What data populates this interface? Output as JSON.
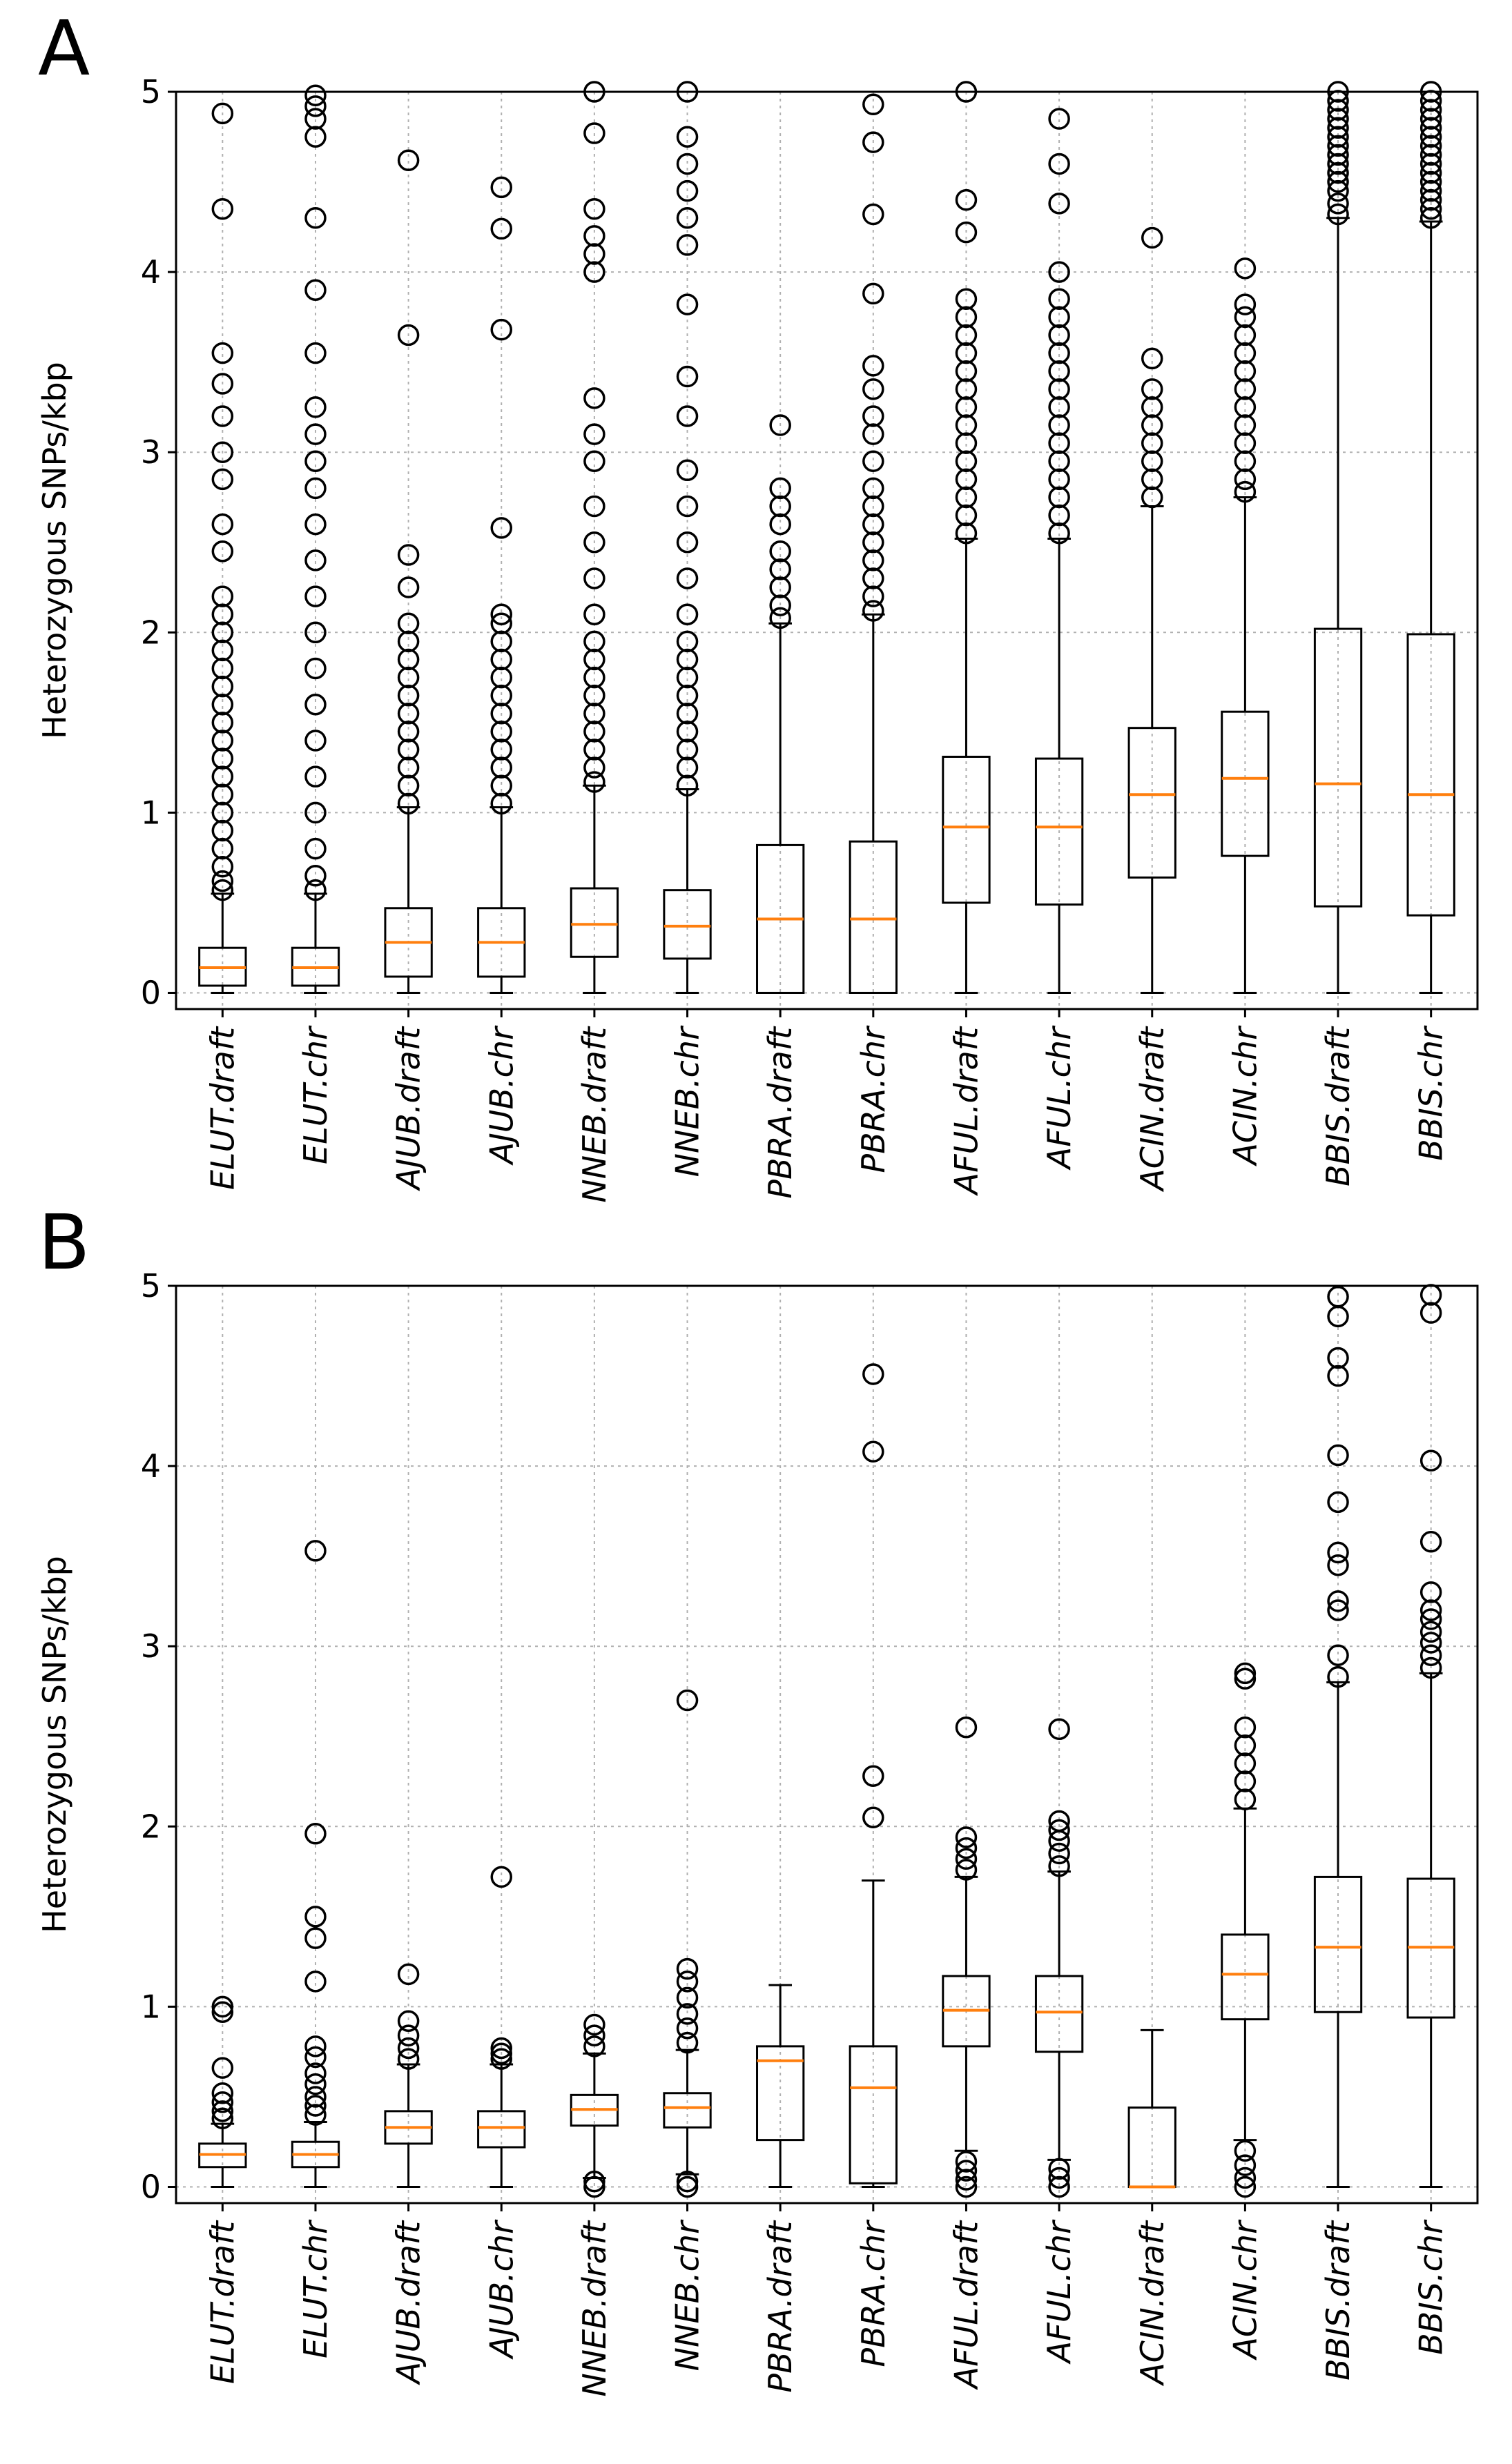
{
  "chart_data": [
    {
      "type": "boxplot",
      "panel": "A",
      "ylabel": "Heterozygous SNPs/kbp",
      "ylim": [
        0,
        5
      ],
      "yticks": [
        "0",
        "1",
        "2",
        "3",
        "4",
        "5"
      ],
      "grid": true,
      "categories": [
        "ELUT.draft",
        "ELUT.chr",
        "AJUB.draft",
        "AJUB.chr",
        "NNEB.draft",
        "NNEB.chr",
        "PBRA.draft",
        "PBRA.chr",
        "AFUL.draft",
        "AFUL.chr",
        "ACIN.draft",
        "ACIN.chr",
        "BBIS.draft",
        "BBIS.chr"
      ],
      "boxes": [
        {
          "q1": 0.04,
          "median": 0.14,
          "q3": 0.25,
          "whislo": 0.0,
          "whishi": 0.55,
          "fliers": [
            0.57,
            0.62,
            0.7,
            0.8,
            0.9,
            1.0,
            1.1,
            1.2,
            1.3,
            1.4,
            1.5,
            1.6,
            1.7,
            1.8,
            1.9,
            2.0,
            2.1,
            2.2,
            2.45,
            2.6,
            2.85,
            3.0,
            3.2,
            3.38,
            3.55,
            4.35,
            4.88
          ]
        },
        {
          "q1": 0.04,
          "median": 0.14,
          "q3": 0.25,
          "whislo": 0.0,
          "whishi": 0.55,
          "fliers": [
            0.57,
            0.65,
            0.8,
            1.0,
            1.2,
            1.4,
            1.6,
            1.8,
            2.0,
            2.2,
            2.4,
            2.6,
            2.8,
            2.95,
            3.1,
            3.25,
            3.55,
            3.9,
            4.3,
            4.75,
            4.85,
            4.92,
            4.98
          ]
        },
        {
          "q1": 0.09,
          "median": 0.28,
          "q3": 0.47,
          "whislo": 0.0,
          "whishi": 1.03,
          "fliers": [
            1.05,
            1.15,
            1.25,
            1.35,
            1.45,
            1.55,
            1.65,
            1.75,
            1.85,
            1.95,
            2.05,
            2.25,
            2.43,
            3.65,
            4.62
          ]
        },
        {
          "q1": 0.09,
          "median": 0.28,
          "q3": 0.47,
          "whislo": 0.0,
          "whishi": 1.03,
          "fliers": [
            1.05,
            1.15,
            1.25,
            1.35,
            1.45,
            1.55,
            1.65,
            1.75,
            1.85,
            1.95,
            2.05,
            2.1,
            2.58,
            3.68,
            4.24,
            4.47
          ]
        },
        {
          "q1": 0.2,
          "median": 0.38,
          "q3": 0.58,
          "whislo": 0.0,
          "whishi": 1.15,
          "fliers": [
            1.17,
            1.25,
            1.35,
            1.45,
            1.55,
            1.65,
            1.75,
            1.85,
            1.95,
            2.1,
            2.3,
            2.5,
            2.7,
            2.95,
            3.1,
            3.3,
            4.0,
            4.1,
            4.2,
            4.35,
            4.77,
            5.0
          ]
        },
        {
          "q1": 0.19,
          "median": 0.37,
          "q3": 0.57,
          "whislo": 0.0,
          "whishi": 1.13,
          "fliers": [
            1.15,
            1.25,
            1.35,
            1.45,
            1.55,
            1.65,
            1.75,
            1.85,
            1.95,
            2.1,
            2.3,
            2.5,
            2.7,
            2.9,
            3.2,
            3.42,
            3.82,
            4.15,
            4.3,
            4.45,
            4.6,
            4.75,
            5.0
          ]
        },
        {
          "q1": 0.0,
          "median": 0.41,
          "q3": 0.82,
          "whislo": 0.0,
          "whishi": 2.05,
          "fliers": [
            2.08,
            2.15,
            2.25,
            2.35,
            2.45,
            2.6,
            2.7,
            2.8,
            3.15
          ]
        },
        {
          "q1": 0.0,
          "median": 0.41,
          "q3": 0.84,
          "whislo": 0.0,
          "whishi": 2.1,
          "fliers": [
            2.12,
            2.2,
            2.3,
            2.4,
            2.5,
            2.6,
            2.7,
            2.8,
            2.95,
            3.1,
            3.2,
            3.35,
            3.48,
            3.88,
            4.32,
            4.72,
            4.93
          ]
        },
        {
          "q1": 0.5,
          "median": 0.92,
          "q3": 1.31,
          "whislo": 0.0,
          "whishi": 2.52,
          "fliers": [
            2.55,
            2.65,
            2.75,
            2.85,
            2.95,
            3.05,
            3.15,
            3.25,
            3.35,
            3.45,
            3.55,
            3.65,
            3.75,
            3.85,
            4.22,
            4.4,
            5.0
          ]
        },
        {
          "q1": 0.49,
          "median": 0.92,
          "q3": 1.3,
          "whislo": 0.0,
          "whishi": 2.52,
          "fliers": [
            2.55,
            2.65,
            2.75,
            2.85,
            2.95,
            3.05,
            3.15,
            3.25,
            3.35,
            3.45,
            3.55,
            3.65,
            3.75,
            3.85,
            4.0,
            4.38,
            4.6,
            4.85
          ]
        },
        {
          "q1": 0.64,
          "median": 1.1,
          "q3": 1.47,
          "whislo": 0.0,
          "whishi": 2.7,
          "fliers": [
            2.75,
            2.85,
            2.95,
            3.05,
            3.15,
            3.25,
            3.35,
            3.52,
            4.19
          ]
        },
        {
          "q1": 0.76,
          "median": 1.19,
          "q3": 1.56,
          "whislo": 0.0,
          "whishi": 2.75,
          "fliers": [
            2.78,
            2.85,
            2.95,
            3.05,
            3.15,
            3.25,
            3.35,
            3.45,
            3.55,
            3.65,
            3.75,
            3.82,
            4.02
          ]
        },
        {
          "q1": 0.48,
          "median": 1.16,
          "q3": 2.02,
          "whislo": 0.0,
          "whishi": 4.3,
          "fliers": [
            4.32,
            4.38,
            4.45,
            4.5,
            4.55,
            4.6,
            4.65,
            4.7,
            4.75,
            4.8,
            4.85,
            4.9,
            4.95,
            5.0
          ]
        },
        {
          "q1": 0.43,
          "median": 1.1,
          "q3": 1.99,
          "whislo": 0.0,
          "whishi": 4.28,
          "fliers": [
            4.3,
            4.35,
            4.4,
            4.45,
            4.5,
            4.55,
            4.6,
            4.65,
            4.7,
            4.75,
            4.8,
            4.85,
            4.9,
            4.95,
            5.0
          ]
        }
      ]
    },
    {
      "type": "boxplot",
      "panel": "B",
      "ylabel": "Heterozygous SNPs/kbp",
      "ylim": [
        0,
        5
      ],
      "yticks": [
        "0",
        "1",
        "2",
        "3",
        "4",
        "5"
      ],
      "grid": true,
      "categories": [
        "ELUT.draft",
        "ELUT.chr",
        "AJUB.draft",
        "AJUB.chr",
        "NNEB.draft",
        "NNEB.chr",
        "PBRA.draft",
        "PBRA.chr",
        "AFUL.draft",
        "AFUL.chr",
        "ACIN.draft",
        "ACIN.chr",
        "BBIS.draft",
        "BBIS.chr"
      ],
      "boxes": [
        {
          "q1": 0.11,
          "median": 0.18,
          "q3": 0.24,
          "whislo": 0.0,
          "whishi": 0.35,
          "fliers": [
            0.38,
            0.42,
            0.47,
            0.52,
            0.66,
            0.97,
            1.0
          ]
        },
        {
          "q1": 0.11,
          "median": 0.18,
          "q3": 0.25,
          "whislo": 0.0,
          "whishi": 0.36,
          "fliers": [
            0.4,
            0.45,
            0.5,
            0.57,
            0.63,
            0.72,
            0.78,
            1.14,
            1.38,
            1.5,
            1.96,
            3.53
          ]
        },
        {
          "q1": 0.24,
          "median": 0.33,
          "q3": 0.42,
          "whislo": 0.0,
          "whishi": 0.68,
          "fliers": [
            0.71,
            0.77,
            0.84,
            0.92,
            1.18
          ]
        },
        {
          "q1": 0.22,
          "median": 0.33,
          "q3": 0.42,
          "whislo": 0.0,
          "whishi": 0.68,
          "fliers": [
            0.71,
            0.74,
            0.77,
            1.72
          ]
        },
        {
          "q1": 0.34,
          "median": 0.43,
          "q3": 0.51,
          "whislo": 0.05,
          "whishi": 0.74,
          "fliers": [
            0.0,
            0.03,
            0.78,
            0.84,
            0.9
          ]
        },
        {
          "q1": 0.33,
          "median": 0.44,
          "q3": 0.52,
          "whislo": 0.07,
          "whishi": 0.76,
          "fliers": [
            0.0,
            0.03,
            0.8,
            0.88,
            0.96,
            1.05,
            1.14,
            1.21,
            2.7
          ]
        },
        {
          "q1": 0.26,
          "median": 0.7,
          "q3": 0.78,
          "whislo": 0.0,
          "whishi": 1.12,
          "fliers": []
        },
        {
          "q1": 0.02,
          "median": 0.55,
          "q3": 0.78,
          "whislo": 0.0,
          "whishi": 1.7,
          "fliers": [
            2.05,
            2.28,
            4.08,
            4.51
          ]
        },
        {
          "q1": 0.78,
          "median": 0.98,
          "q3": 1.17,
          "whislo": 0.2,
          "whishi": 1.72,
          "fliers": [
            0.0,
            0.04,
            0.09,
            0.14,
            1.76,
            1.82,
            1.88,
            1.94,
            2.55
          ]
        },
        {
          "q1": 0.75,
          "median": 0.97,
          "q3": 1.17,
          "whislo": 0.15,
          "whishi": 1.75,
          "fliers": [
            0.0,
            0.05,
            0.1,
            1.78,
            1.85,
            1.92,
            1.98,
            2.03,
            2.54
          ]
        },
        {
          "q1": 0.0,
          "median": 0.0,
          "q3": 0.44,
          "whislo": 0.0,
          "whishi": 0.87,
          "fliers": []
        },
        {
          "q1": 0.93,
          "median": 1.18,
          "q3": 1.4,
          "whislo": 0.26,
          "whishi": 2.1,
          "fliers": [
            0.0,
            0.05,
            0.12,
            0.2,
            2.15,
            2.25,
            2.35,
            2.45,
            2.55,
            2.82,
            2.85
          ]
        },
        {
          "q1": 0.97,
          "median": 1.33,
          "q3": 1.72,
          "whislo": 0.0,
          "whishi": 2.8,
          "fliers": [
            2.83,
            2.95,
            3.2,
            3.25,
            3.45,
            3.52,
            3.8,
            4.06,
            4.5,
            4.6,
            4.83,
            4.94
          ]
        },
        {
          "q1": 0.94,
          "median": 1.33,
          "q3": 1.71,
          "whislo": 0.0,
          "whishi": 2.85,
          "fliers": [
            2.88,
            2.95,
            3.02,
            3.08,
            3.15,
            3.2,
            3.3,
            3.58,
            4.03,
            4.85,
            4.95
          ]
        }
      ]
    }
  ],
  "colors": {
    "median": "#ff7f0e",
    "box": "#000000",
    "grid": "#b0b0b0"
  }
}
